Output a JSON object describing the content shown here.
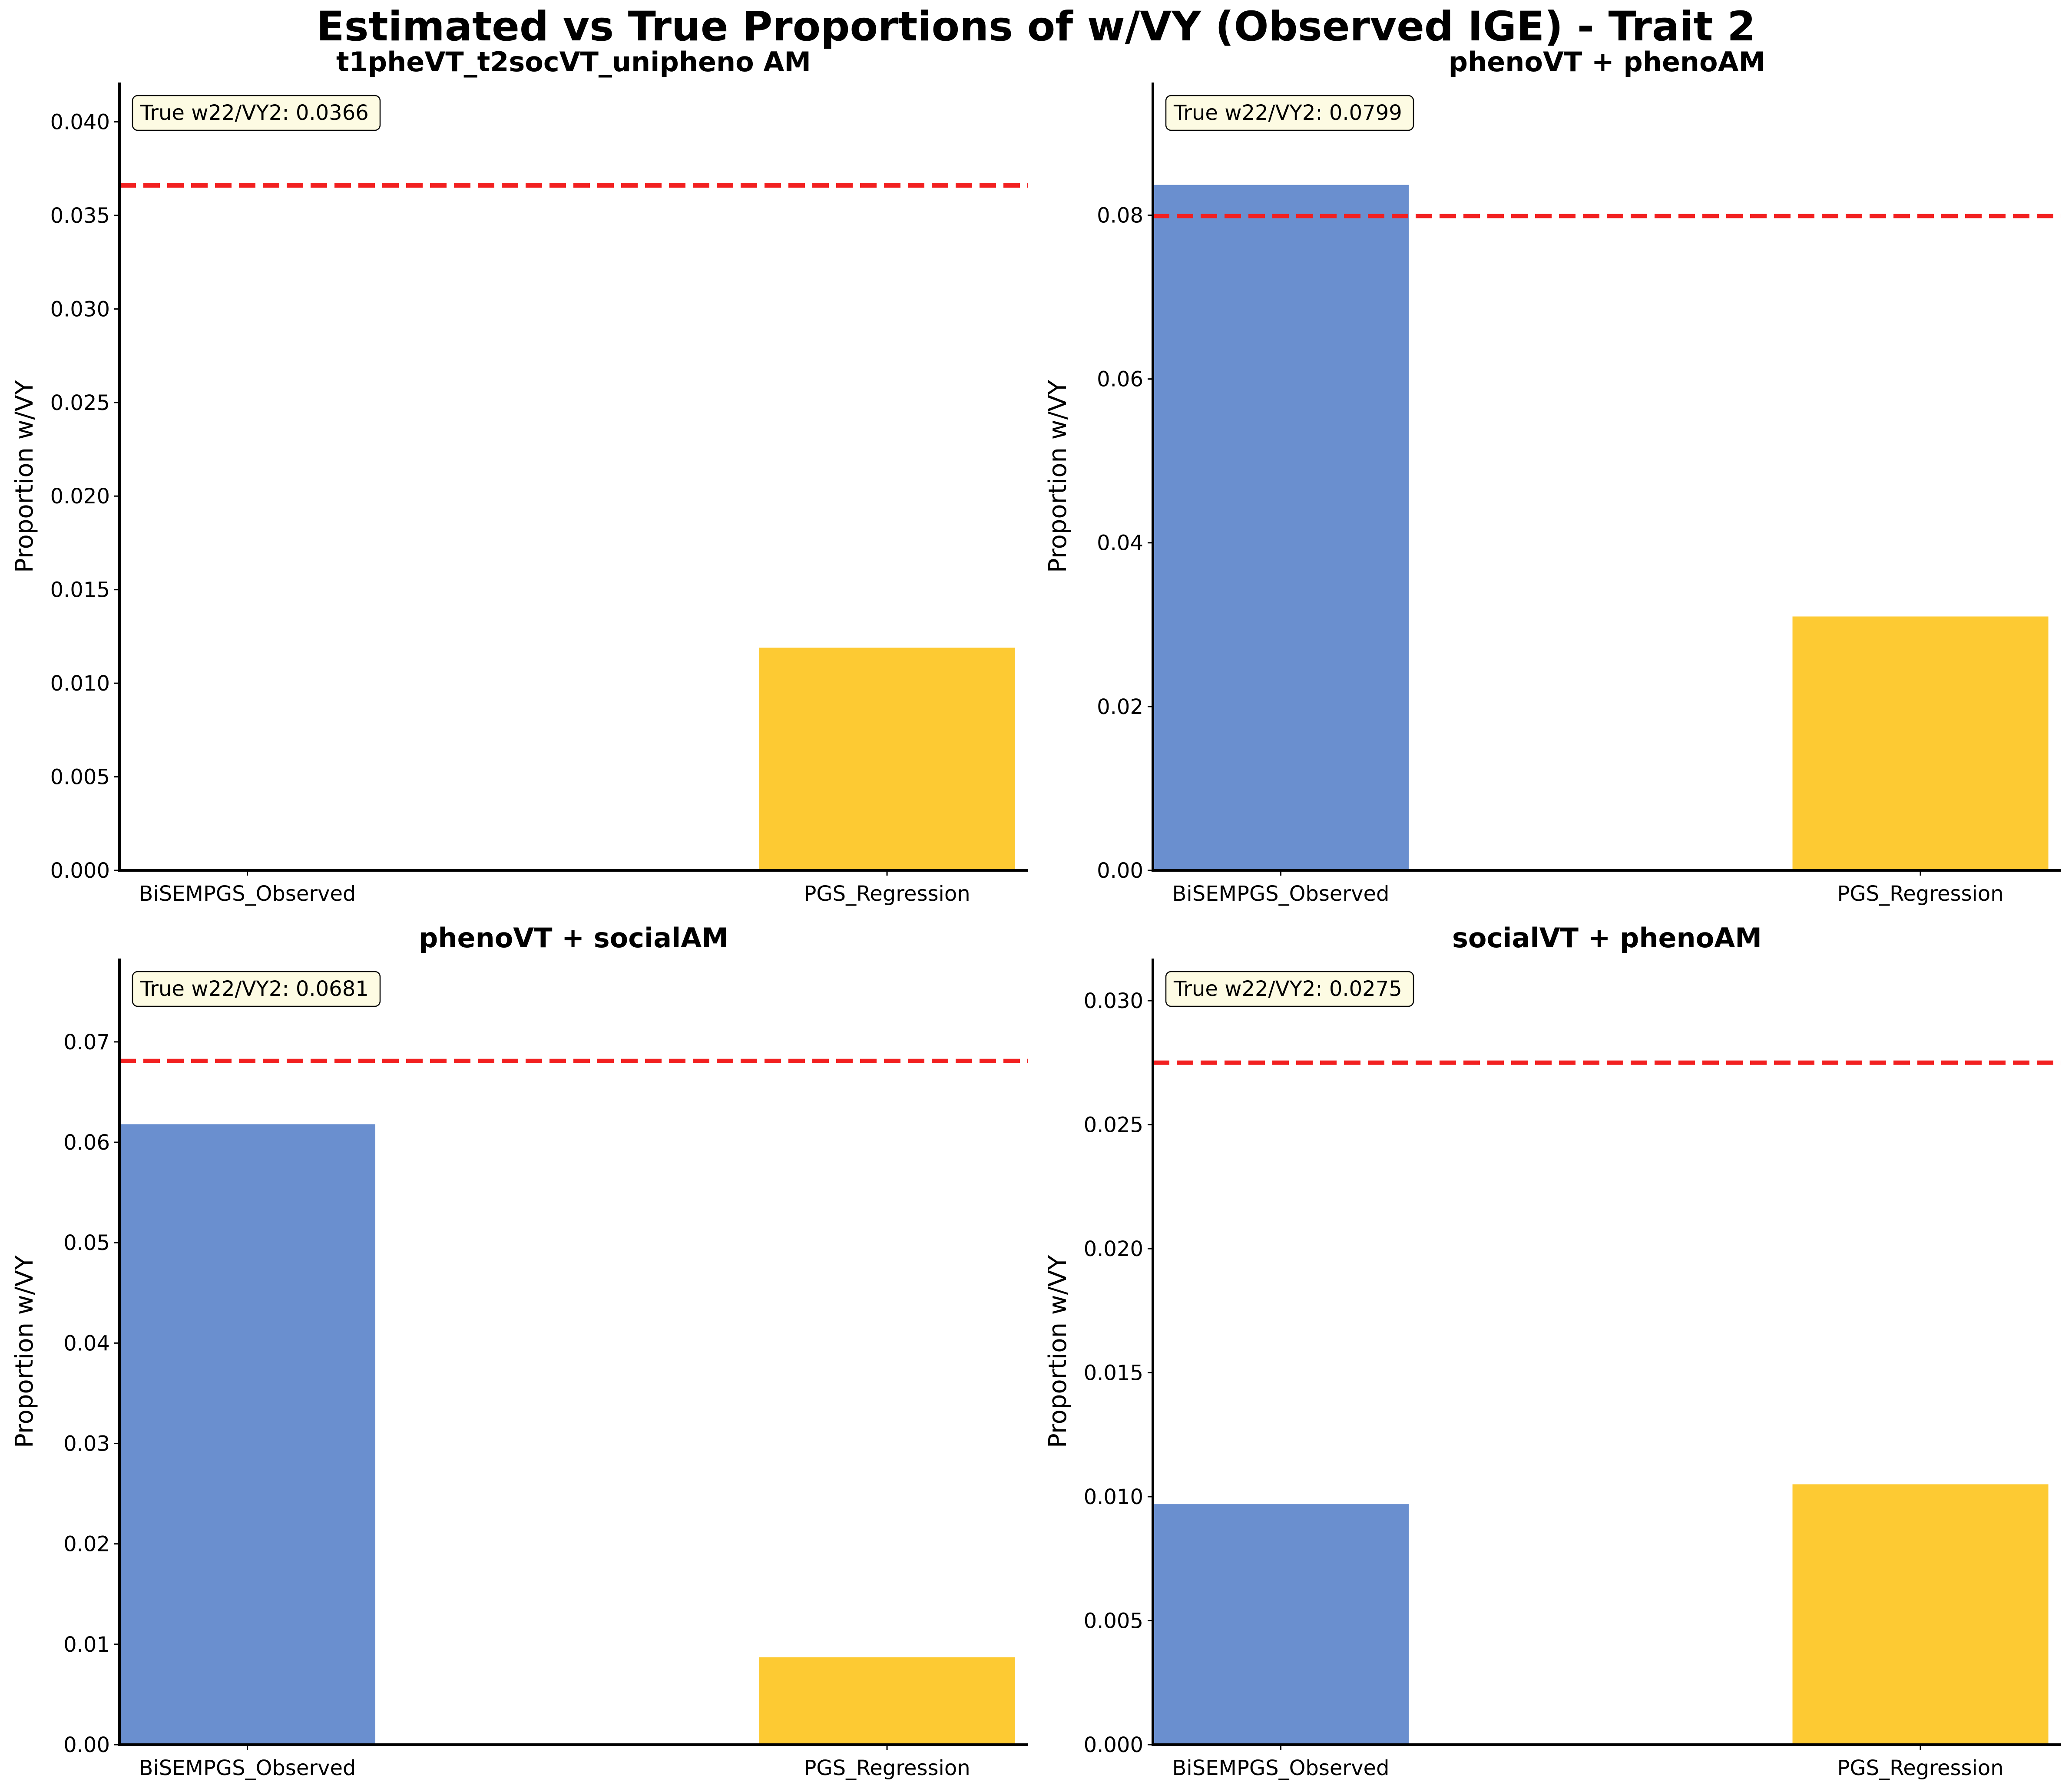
{
  "suptitle": "Estimated vs True Proportions of w/VY (Observed IGE) - Trait 2",
  "colors": {
    "bisempgs": "#6a8fcf",
    "pgs_regression": "#fdca33",
    "true_line": "#f22020",
    "annotation_bg": "#fdfbe3"
  },
  "chart_data": [
    {
      "type": "bar",
      "title": "t1pheVT_t2socVT_unipheno AM",
      "categories": [
        "BiSEMPGS_Observed",
        "PGS_Regression"
      ],
      "values": [
        0.0,
        0.0119
      ],
      "true_value": 0.0366,
      "annotation": "True w22/VY2: 0.0366",
      "ylabel": "Proportion w/VY",
      "ylim": [
        0,
        0.0421
      ],
      "yticks": [
        0.0,
        0.005,
        0.01,
        0.015,
        0.02,
        0.025,
        0.03,
        0.035,
        0.04
      ],
      "ytick_labels": [
        "0.000",
        "0.005",
        "0.010",
        "0.015",
        "0.020",
        "0.025",
        "0.030",
        "0.035",
        "0.040"
      ]
    },
    {
      "type": "bar",
      "title": "phenoVT + phenoAM",
      "categories": [
        "BiSEMPGS_Observed",
        "PGS_Regression"
      ],
      "values": [
        0.0837,
        0.031
      ],
      "true_value": 0.0799,
      "annotation": "True w22/VY2: 0.0799",
      "ylabel": "Proportion w/VY",
      "ylim": [
        0,
        0.0962
      ],
      "yticks": [
        0.0,
        0.02,
        0.04,
        0.06,
        0.08
      ],
      "ytick_labels": [
        "0.00",
        "0.02",
        "0.04",
        "0.06",
        "0.08"
      ]
    },
    {
      "type": "bar",
      "title": "phenoVT + socialAM",
      "categories": [
        "BiSEMPGS_Observed",
        "PGS_Regression"
      ],
      "values": [
        0.0618,
        0.0087
      ],
      "true_value": 0.0681,
      "annotation": "True w22/VY2: 0.0681",
      "ylabel": "Proportion w/VY",
      "ylim": [
        0,
        0.0783
      ],
      "yticks": [
        0.0,
        0.01,
        0.02,
        0.03,
        0.04,
        0.05,
        0.06,
        0.07
      ],
      "ytick_labels": [
        "0.00",
        "0.01",
        "0.02",
        "0.03",
        "0.04",
        "0.05",
        "0.06",
        "0.07"
      ]
    },
    {
      "type": "bar",
      "title": "socialVT + phenoAM",
      "categories": [
        "BiSEMPGS_Observed",
        "PGS_Regression"
      ],
      "values": [
        0.0097,
        0.0105
      ],
      "true_value": 0.0275,
      "annotation": "True w22/VY2: 0.0275",
      "ylabel": "Proportion w/VY",
      "ylim": [
        0,
        0.0317
      ],
      "yticks": [
        0.0,
        0.005,
        0.01,
        0.015,
        0.02,
        0.025,
        0.03
      ],
      "ytick_labels": [
        "0.000",
        "0.005",
        "0.010",
        "0.015",
        "0.020",
        "0.025",
        "0.030"
      ]
    }
  ]
}
